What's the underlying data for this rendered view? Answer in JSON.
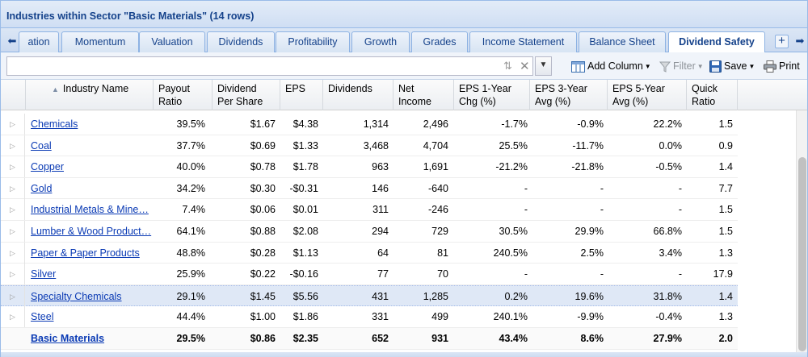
{
  "panel": {
    "title": "Industries within Sector \"Basic Materials\" (14 rows)"
  },
  "tabs": [
    {
      "label": "ation"
    },
    {
      "label": "Momentum"
    },
    {
      "label": "Valuation"
    },
    {
      "label": "Dividends"
    },
    {
      "label": "Profitability"
    },
    {
      "label": "Growth"
    },
    {
      "label": "Grades"
    },
    {
      "label": "Income Statement"
    },
    {
      "label": "Balance Sheet"
    },
    {
      "label": "Dividend Safety",
      "active": true
    }
  ],
  "tab_scroll": {
    "left_icon": "arrow-left-icon",
    "right_icon": "arrow-right-icon",
    "add_icon": "plus-icon"
  },
  "toolbar": {
    "search_value": "",
    "add_column_label": "Add Column",
    "filter_label": "Filter",
    "save_label": "Save",
    "print_label": "Print"
  },
  "grid": {
    "columns": [
      {
        "key": "name",
        "label": "Industry Name",
        "sorted": "asc"
      },
      {
        "key": "payout",
        "label": "Payout\nRatio"
      },
      {
        "key": "dps",
        "label": "Dividend\nPer Share"
      },
      {
        "key": "eps",
        "label": "EPS"
      },
      {
        "key": "dividends",
        "label": "Dividends"
      },
      {
        "key": "net_income",
        "label": "Net\nIncome"
      },
      {
        "key": "eps1",
        "label": "EPS 1-Year\nChg (%)"
      },
      {
        "key": "eps3",
        "label": "EPS 3-Year\nAvg (%)"
      },
      {
        "key": "eps5",
        "label": "EPS 5-Year\nAvg (%)"
      },
      {
        "key": "quick",
        "label": "Quick\nRatio"
      }
    ],
    "rows": [
      {
        "name": "Chemicals",
        "payout": "39.5%",
        "dps": "$1.67",
        "eps": "$4.38",
        "dividends": "1,314",
        "net_income": "2,496",
        "eps1": "-1.7%",
        "eps3": "-0.9%",
        "eps5": "22.2%",
        "quick": "1.5"
      },
      {
        "name": "Coal",
        "payout": "37.7%",
        "dps": "$0.69",
        "eps": "$1.33",
        "dividends": "3,468",
        "net_income": "4,704",
        "eps1": "25.5%",
        "eps3": "-11.7%",
        "eps5": "0.0%",
        "quick": "0.9"
      },
      {
        "name": "Copper",
        "payout": "40.0%",
        "dps": "$0.78",
        "eps": "$1.78",
        "dividends": "963",
        "net_income": "1,691",
        "eps1": "-21.2%",
        "eps3": "-21.8%",
        "eps5": "-0.5%",
        "quick": "1.4"
      },
      {
        "name": "Gold",
        "payout": "34.2%",
        "dps": "$0.30",
        "eps": "-$0.31",
        "dividends": "146",
        "net_income": "-640",
        "eps1": "-",
        "eps3": "-",
        "eps5": "-",
        "quick": "7.7"
      },
      {
        "name": "Industrial Metals & Mine…",
        "payout": "7.4%",
        "dps": "$0.06",
        "eps": "$0.01",
        "dividends": "311",
        "net_income": "-246",
        "eps1": "-",
        "eps3": "-",
        "eps5": "-",
        "quick": "1.5"
      },
      {
        "name": "Lumber & Wood Product…",
        "payout": "64.1%",
        "dps": "$0.88",
        "eps": "$2.08",
        "dividends": "294",
        "net_income": "729",
        "eps1": "30.5%",
        "eps3": "29.9%",
        "eps5": "66.8%",
        "quick": "1.5"
      },
      {
        "name": "Paper & Paper Products",
        "payout": "48.8%",
        "dps": "$0.28",
        "eps": "$1.13",
        "dividends": "64",
        "net_income": "81",
        "eps1": "240.5%",
        "eps3": "2.5%",
        "eps5": "3.4%",
        "quick": "1.3"
      },
      {
        "name": "Silver",
        "payout": "25.9%",
        "dps": "$0.22",
        "eps": "-$0.16",
        "dividends": "77",
        "net_income": "70",
        "eps1": "-",
        "eps3": "-",
        "eps5": "-",
        "quick": "17.9"
      },
      {
        "name": "Specialty Chemicals",
        "payout": "29.1%",
        "dps": "$1.45",
        "eps": "$5.56",
        "dividends": "431",
        "net_income": "1,285",
        "eps1": "0.2%",
        "eps3": "19.6%",
        "eps5": "31.8%",
        "quick": "1.4",
        "highlighted": true
      },
      {
        "name": "Steel",
        "payout": "44.4%",
        "dps": "$1.00",
        "eps": "$1.86",
        "dividends": "331",
        "net_income": "499",
        "eps1": "240.1%",
        "eps3": "-9.9%",
        "eps5": "-0.4%",
        "quick": "1.3"
      }
    ],
    "total": {
      "name": "Basic Materials",
      "payout": "29.5%",
      "dps": "$0.86",
      "eps": "$2.35",
      "dividends": "652",
      "net_income": "931",
      "eps1": "43.4%",
      "eps3": "8.6%",
      "eps5": "27.9%",
      "quick": "2.0"
    }
  }
}
